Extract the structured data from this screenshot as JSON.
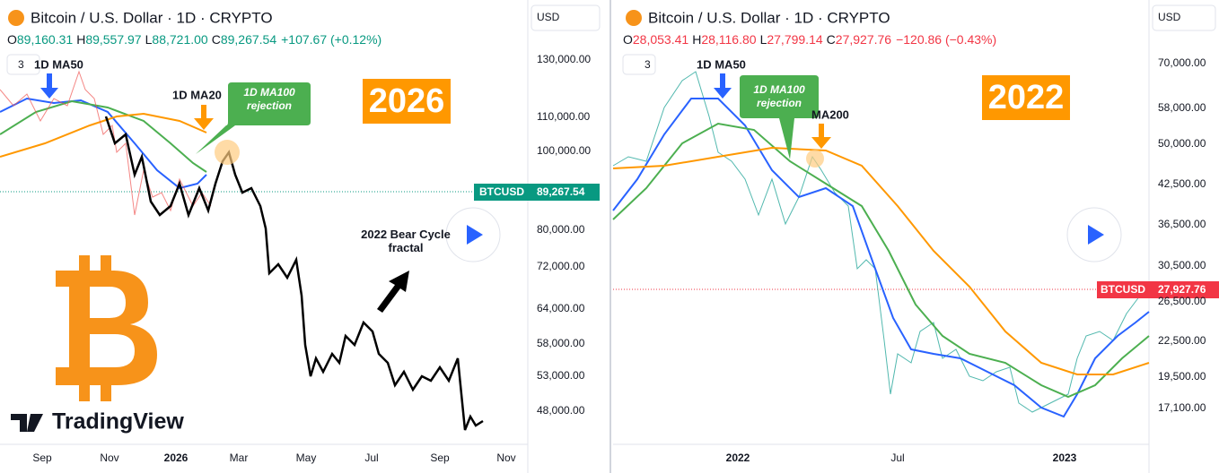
{
  "left": {
    "title": "Bitcoin / U.S. Dollar · 1D · CRYPTO",
    "ohlc": {
      "o_label": "O",
      "o": "89,160.31",
      "h_label": "H",
      "h": "89,557.97",
      "l_label": "L",
      "l": "88,721.00",
      "c_label": "C",
      "c": "89,267.54",
      "change": "+107.67 (+0.12%)"
    },
    "indicators": "3",
    "annotations": {
      "ma50": "1D MA50",
      "ma200": "1D MA20",
      "callout": "1D MA100\nrejection",
      "year": "2026",
      "fractal": "2022 Bear Cycle\nfractal",
      "brand": "TradingView"
    },
    "price_axis": {
      "currency": "USD",
      "labels": [
        "130,000.00",
        "110,000.00",
        "100,000.00",
        "80,000.00",
        "72,000.00",
        "64,000.00",
        "58,000.00",
        "53,000.00",
        "48,000.00"
      ],
      "tag_symbol": "BTCUSD",
      "tag_price": "89,267.54"
    },
    "time_axis": [
      "Sep",
      "Nov",
      "2026",
      "Mar",
      "May",
      "Jul",
      "Sep",
      "Nov"
    ]
  },
  "right": {
    "title": "Bitcoin / U.S. Dollar · 1D · CRYPTO",
    "ohlc": {
      "o_label": "O",
      "o": "28,053.41",
      "h_label": "H",
      "h": "28,116.80",
      "l_label": "L",
      "l": "27,799.14",
      "c_label": "C",
      "c": "27,927.76",
      "change": "−120.86 (−0.43%)"
    },
    "indicators": "3",
    "annotations": {
      "ma50": "1D MA50",
      "ma200": "MA200",
      "callout": "1D MA100\nrejection",
      "year": "2022"
    },
    "price_axis": {
      "currency": "USD",
      "labels": [
        "70,000.00",
        "58,000.00",
        "50,000.00",
        "42,500.00",
        "36,500.00",
        "30,500.00",
        "26,500.00",
        "22,500.00",
        "19,500.00",
        "17,100.00"
      ],
      "tag_symbol": "BTCUSD",
      "tag_price": "27,927.76"
    },
    "time_axis": [
      "2022",
      "Jul",
      "2023"
    ]
  }
}
